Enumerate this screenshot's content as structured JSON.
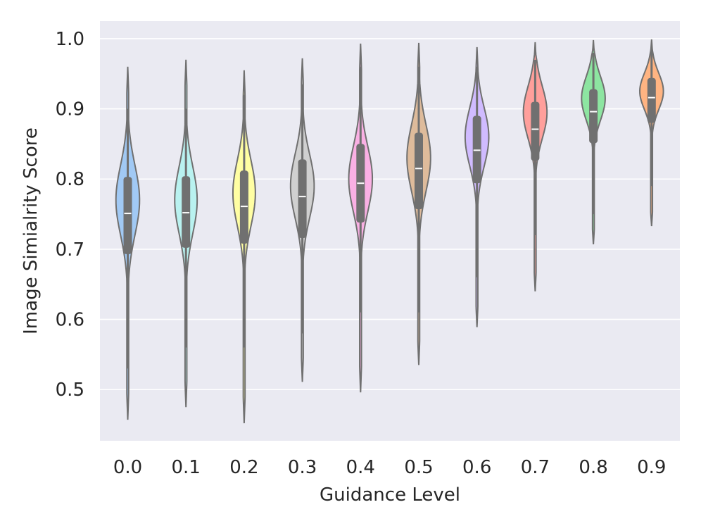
{
  "chart_data": {
    "type": "violin",
    "title": "",
    "xlabel": "Guidance Level",
    "ylabel": "Image Simialrity Score",
    "ylim": [
      0.427,
      1.025
    ],
    "yticks": [
      0.5,
      0.6,
      0.7,
      0.8,
      0.9,
      1.0
    ],
    "ytick_labels": [
      "0.5",
      "0.6",
      "0.7",
      "0.8",
      "0.9",
      "1.0"
    ],
    "grid": true,
    "categories": [
      "0.0",
      "0.1",
      "0.2",
      "0.3",
      "0.4",
      "0.5",
      "0.6",
      "0.7",
      "0.8",
      "0.9"
    ],
    "series": [
      {
        "name": "0.0",
        "color": "#a1c9f4",
        "min": 0.457,
        "max": 0.96,
        "q1": 0.693,
        "median": 0.751,
        "q3": 0.803,
        "whisker_low": 0.53,
        "whisker_high": 0.9,
        "mode": 0.77,
        "spread": 0.05,
        "max_halfwidth": 0.4
      },
      {
        "name": "0.1",
        "color": "#b9f2f0",
        "min": 0.475,
        "max": 0.97,
        "q1": 0.702,
        "median": 0.752,
        "q3": 0.804,
        "whisker_low": 0.56,
        "whisker_high": 0.9,
        "mode": 0.77,
        "spread": 0.048,
        "max_halfwidth": 0.38
      },
      {
        "name": "0.2",
        "color": "#fffea3",
        "min": 0.452,
        "max": 0.955,
        "q1": 0.708,
        "median": 0.761,
        "q3": 0.812,
        "whisker_low": 0.56,
        "whisker_high": 0.92,
        "mode": 0.78,
        "spread": 0.047,
        "max_halfwidth": 0.38
      },
      {
        "name": "0.3",
        "color": "#d0d0d0",
        "min": 0.511,
        "max": 0.972,
        "q1": 0.716,
        "median": 0.775,
        "q3": 0.828,
        "whisker_low": 0.58,
        "whisker_high": 0.935,
        "mode": 0.79,
        "spread": 0.046,
        "max_halfwidth": 0.4
      },
      {
        "name": "0.4",
        "color": "#fab0e4",
        "min": 0.496,
        "max": 0.993,
        "q1": 0.738,
        "median": 0.794,
        "q3": 0.85,
        "whisker_low": 0.61,
        "whisker_high": 0.96,
        "mode": 0.8,
        "spread": 0.047,
        "max_halfwidth": 0.4
      },
      {
        "name": "0.5",
        "color": "#debb9b",
        "min": 0.535,
        "max": 0.994,
        "q1": 0.757,
        "median": 0.815,
        "q3": 0.866,
        "whisker_low": 0.61,
        "whisker_high": 0.96,
        "mode": 0.83,
        "spread": 0.048,
        "max_halfwidth": 0.4
      },
      {
        "name": "0.6",
        "color": "#d0bbff",
        "min": 0.589,
        "max": 0.988,
        "q1": 0.794,
        "median": 0.841,
        "q3": 0.89,
        "whisker_low": 0.66,
        "whisker_high": 0.96,
        "mode": 0.86,
        "spread": 0.042,
        "max_halfwidth": 0.4
      },
      {
        "name": "0.7",
        "color": "#ff9f9b",
        "min": 0.64,
        "max": 0.995,
        "q1": 0.826,
        "median": 0.871,
        "q3": 0.91,
        "whisker_low": 0.72,
        "whisker_high": 0.97,
        "mode": 0.895,
        "spread": 0.037,
        "max_halfwidth": 0.4
      },
      {
        "name": "0.8",
        "color": "#8de5a1",
        "min": 0.707,
        "max": 0.998,
        "q1": 0.851,
        "median": 0.896,
        "q3": 0.928,
        "whisker_low": 0.75,
        "whisker_high": 0.98,
        "mode": 0.915,
        "spread": 0.031,
        "max_halfwidth": 0.4
      },
      {
        "name": "0.9",
        "color": "#ffb482",
        "min": 0.733,
        "max": 0.999,
        "q1": 0.88,
        "median": 0.916,
        "q3": 0.944,
        "whisker_low": 0.79,
        "whisker_high": 0.985,
        "mode": 0.925,
        "spread": 0.026,
        "max_halfwidth": 0.4
      }
    ]
  }
}
